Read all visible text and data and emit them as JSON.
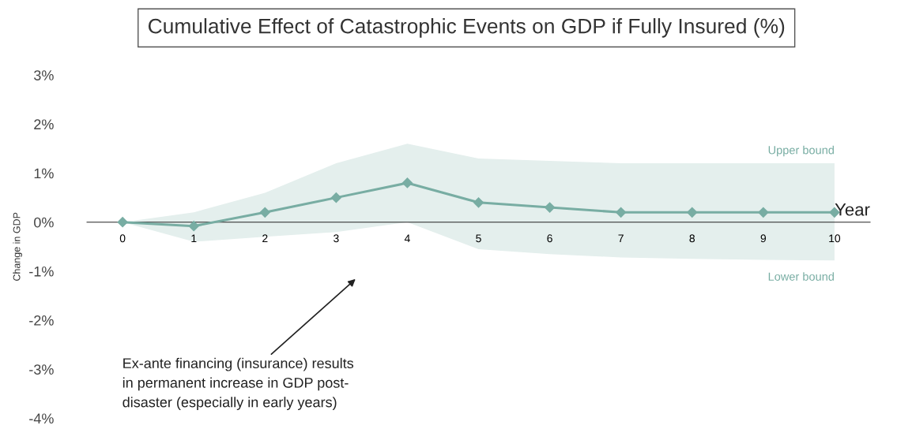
{
  "chart_data": {
    "type": "line",
    "title": "Cumulative Effect of Catastrophic Events on GDP if Fully Insured (%)",
    "xlabel": "Year",
    "ylabel": "Change in GDP",
    "x": [
      0,
      1,
      2,
      3,
      4,
      5,
      6,
      7,
      8,
      9,
      10
    ],
    "series": [
      {
        "color": "#78ada3",
        "values": [
          0,
          -0.08,
          0.2,
          0.5,
          0.8,
          0.4,
          0.3,
          0.2,
          0.2,
          0.2,
          0.2
        ],
        "lower": [
          0,
          -0.4,
          -0.3,
          -0.2,
          0,
          -0.55,
          -0.65,
          -0.72,
          -0.75,
          -0.77,
          -0.78
        ],
        "upper": [
          0,
          0.2,
          0.6,
          1.2,
          1.6,
          1.3,
          1.25,
          1.2,
          1.2,
          1.2,
          1.2
        ]
      }
    ],
    "marker": "diamond",
    "xlim": [
      -0.5,
      10.5
    ],
    "xticks": [
      0,
      1,
      2,
      3,
      4,
      5,
      6,
      7,
      8,
      9,
      10
    ],
    "ylim": [
      -4,
      3
    ],
    "yticks": [
      {
        "value": 3,
        "label": "3%"
      },
      {
        "value": 2,
        "label": "2%"
      },
      {
        "value": 1,
        "label": "1%"
      },
      {
        "value": 0,
        "label": "0%"
      },
      {
        "value": -1,
        "label": "-1%"
      },
      {
        "value": -2,
        "label": "-2%"
      },
      {
        "value": -3,
        "label": "-3%"
      },
      {
        "value": -4,
        "label": "-4%"
      }
    ],
    "grid": false,
    "annotations": [
      "Upper bound",
      "Lower bound",
      "Ex-ante financing (insurance) results\nin permanent increase in GDP post-\ndisaster (especially in early years)"
    ]
  }
}
